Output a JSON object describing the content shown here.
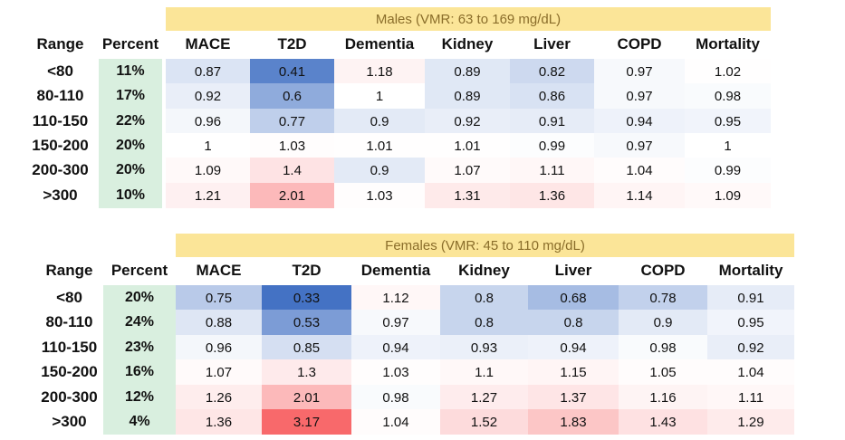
{
  "colors": {
    "banner": "#fbe598",
    "percent_cell": "#d9efdf",
    "low": "#4472c4",
    "high": "#f8696b"
  },
  "chart_data": [
    {
      "type": "heatmap",
      "title": "Males (VMR: 63 to 169 mg/dL)",
      "row_header": "Range",
      "percent_header": "Percent",
      "columns": [
        "MACE",
        "T2D",
        "Dementia",
        "Kidney",
        "Liver",
        "COPD",
        "Mortality"
      ],
      "rows": [
        {
          "range": "<80",
          "percent": "11%",
          "values": [
            0.87,
            0.41,
            1.18,
            0.89,
            0.82,
            0.97,
            1.02
          ],
          "labels": [
            "0.87",
            "0.41",
            "1.18",
            "0.89",
            "0.82",
            "0.97",
            "1.02"
          ]
        },
        {
          "range": "80-110",
          "percent": "17%",
          "values": [
            0.92,
            0.6,
            1,
            0.89,
            0.86,
            0.97,
            0.98
          ],
          "labels": [
            "0.92",
            "0.6",
            "1",
            "0.89",
            "0.86",
            "0.97",
            "0.98"
          ]
        },
        {
          "range": "110-150",
          "percent": "22%",
          "values": [
            0.96,
            0.77,
            0.9,
            0.92,
            0.91,
            0.94,
            0.95
          ],
          "labels": [
            "0.96",
            "0.77",
            "0.9",
            "0.92",
            "0.91",
            "0.94",
            "0.95"
          ]
        },
        {
          "range": "150-200",
          "percent": "20%",
          "values": [
            1,
            1.03,
            1.01,
            1.01,
            0.99,
            0.97,
            1
          ],
          "labels": [
            "1",
            "1.03",
            "1.01",
            "1.01",
            "0.99",
            "0.97",
            "1"
          ]
        },
        {
          "range": "200-300",
          "percent": "20%",
          "values": [
            1.09,
            1.4,
            0.9,
            1.07,
            1.11,
            1.04,
            0.99
          ],
          "labels": [
            "1.09",
            "1.4",
            "0.9",
            "1.07",
            "1.11",
            "1.04",
            "0.99"
          ]
        },
        {
          "range": ">300",
          "percent": "10%",
          "values": [
            1.21,
            2.01,
            1.03,
            1.31,
            1.36,
            1.14,
            1.09
          ],
          "labels": [
            "1.21",
            "2.01",
            "1.03",
            "1.31",
            "1.36",
            "1.14",
            "1.09"
          ]
        }
      ]
    },
    {
      "type": "heatmap",
      "title": "Females (VMR: 45 to 110 mg/dL)",
      "row_header": "Range",
      "percent_header": "Percent",
      "columns": [
        "MACE",
        "T2D",
        "Dementia",
        "Kidney",
        "Liver",
        "COPD",
        "Mortality"
      ],
      "rows": [
        {
          "range": "<80",
          "percent": "20%",
          "values": [
            0.75,
            0.33,
            1.12,
            0.8,
            0.68,
            0.78,
            0.91
          ],
          "labels": [
            "0.75",
            "0.33",
            "1.12",
            "0.8",
            "0.68",
            "0.78",
            "0.91"
          ]
        },
        {
          "range": "80-110",
          "percent": "24%",
          "values": [
            0.88,
            0.53,
            0.97,
            0.8,
            0.8,
            0.9,
            0.95
          ],
          "labels": [
            "0.88",
            "0.53",
            "0.97",
            "0.8",
            "0.8",
            "0.9",
            "0.95"
          ]
        },
        {
          "range": "110-150",
          "percent": "23%",
          "values": [
            0.96,
            0.85,
            0.94,
            0.93,
            0.94,
            0.98,
            0.92
          ],
          "labels": [
            "0.96",
            "0.85",
            "0.94",
            "0.93",
            "0.94",
            "0.98",
            "0.92"
          ]
        },
        {
          "range": "150-200",
          "percent": "16%",
          "values": [
            1.07,
            1.3,
            1.03,
            1.1,
            1.15,
            1.05,
            1.04
          ],
          "labels": [
            "1.07",
            "1.3",
            "1.03",
            "1.1",
            "1.15",
            "1.05",
            "1.04"
          ]
        },
        {
          "range": "200-300",
          "percent": "12%",
          "values": [
            1.26,
            2.01,
            0.98,
            1.27,
            1.37,
            1.16,
            1.11
          ],
          "labels": [
            "1.26",
            "2.01",
            "0.98",
            "1.27",
            "1.37",
            "1.16",
            "1.11"
          ]
        },
        {
          "range": ">300",
          "percent": "4%",
          "values": [
            1.36,
            3.17,
            1.04,
            1.52,
            1.83,
            1.43,
            1.29
          ],
          "labels": [
            "1.36",
            "3.17",
            "1.04",
            "1.52",
            "1.83",
            "1.43",
            "1.29"
          ]
        }
      ]
    }
  ]
}
